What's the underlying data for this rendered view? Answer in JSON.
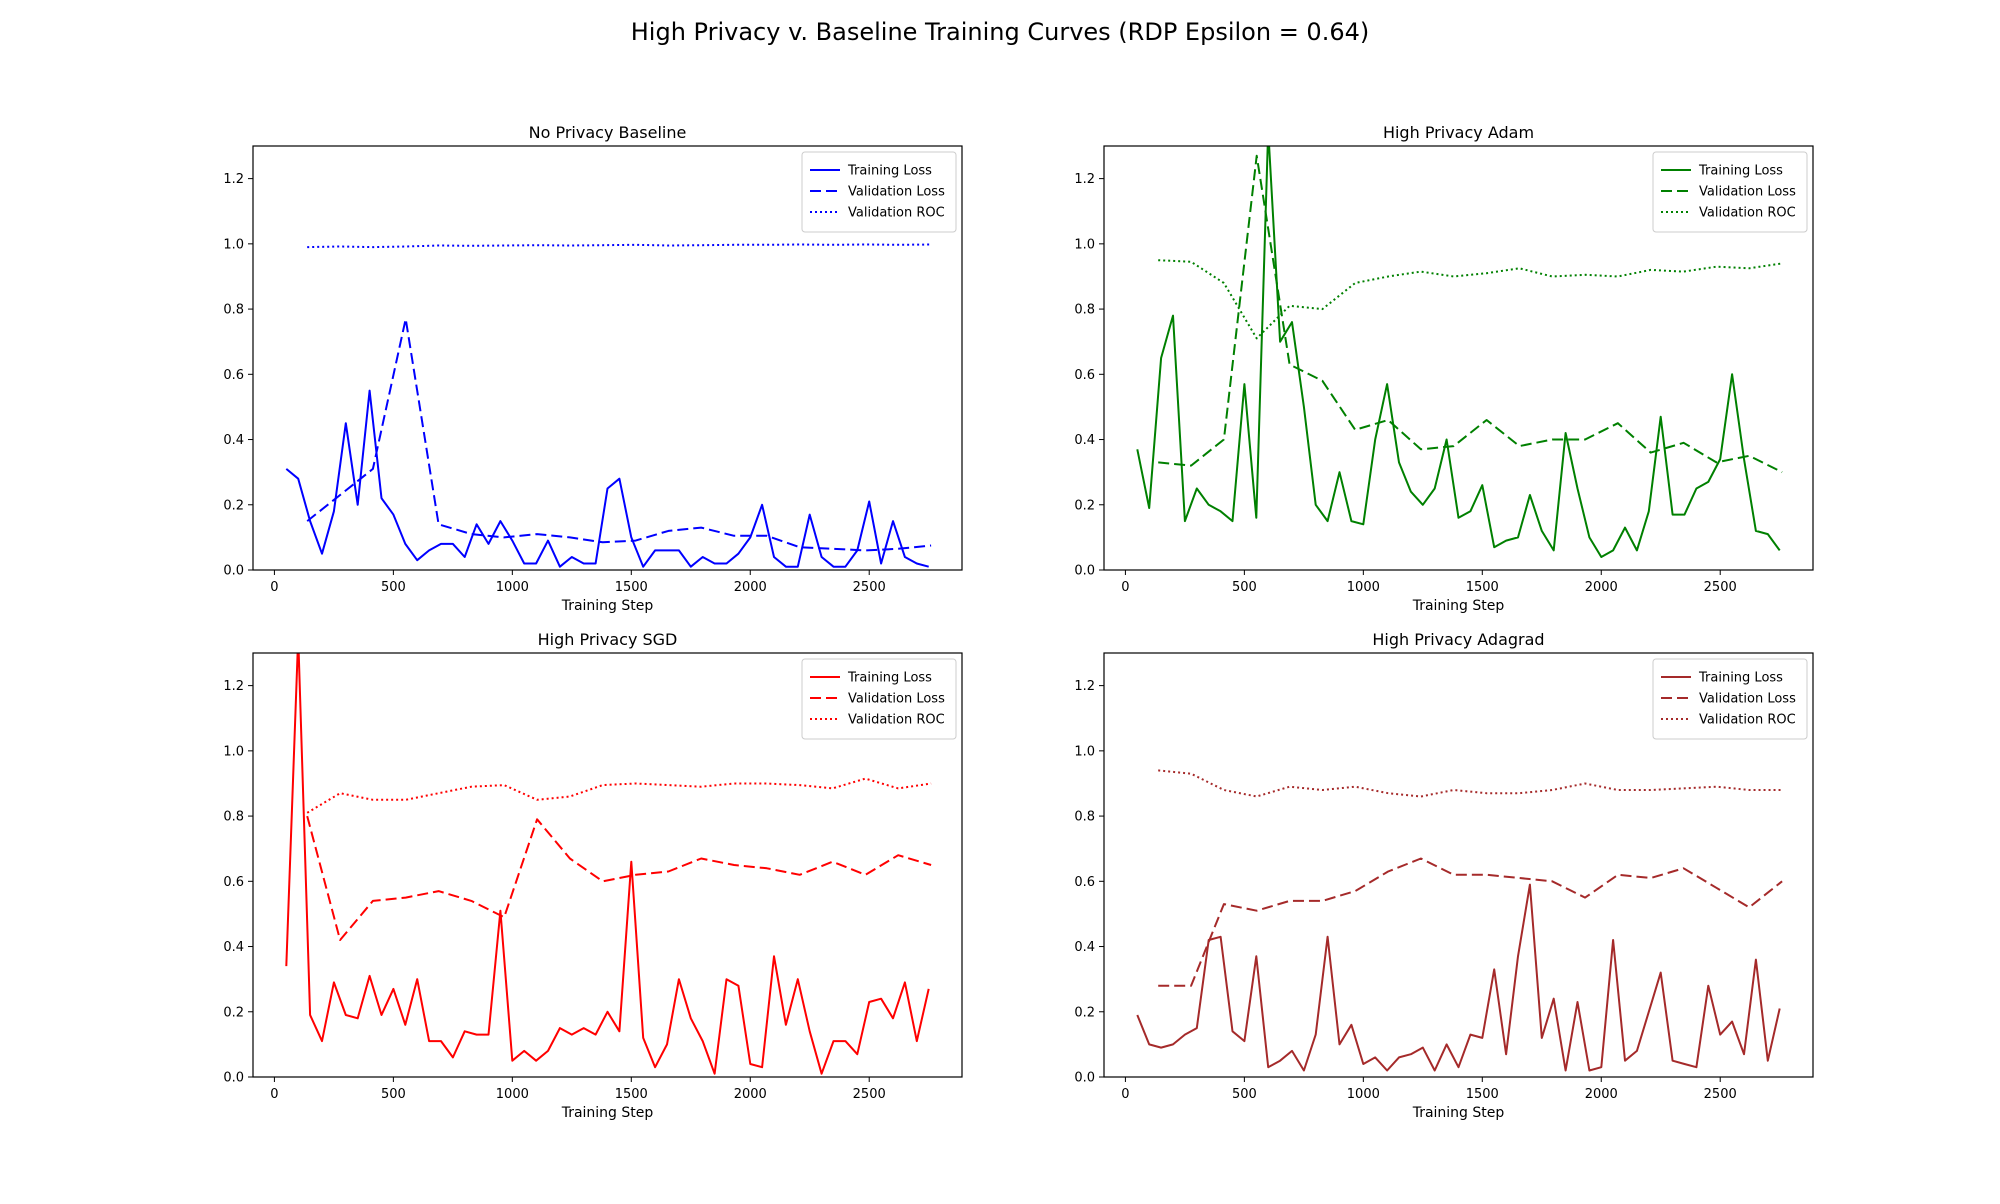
{
  "figure": {
    "suptitle": "High Privacy v. Baseline Training Curves (RDP Epsilon = 0.64)"
  },
  "chart_data": [
    {
      "type": "line",
      "title": "No Privacy Baseline",
      "xlabel": "Training Step",
      "ylabel": "",
      "xlim": [
        -90,
        2890
      ],
      "ylim": [
        0,
        1.3
      ],
      "xticks": [
        0,
        500,
        1000,
        1500,
        2000,
        2500
      ],
      "yticks": [
        0.0,
        0.2,
        0.4,
        0.6,
        0.8,
        1.0,
        1.2
      ],
      "grid": false,
      "legend_position": "top-right",
      "color": "#0000ff",
      "series": [
        {
          "name": "Training Loss",
          "style": "solid",
          "x": [
            50,
            100,
            150,
            200,
            250,
            300,
            350,
            400,
            450,
            500,
            550,
            600,
            650,
            700,
            750,
            800,
            850,
            900,
            950,
            1000,
            1050,
            1100,
            1150,
            1200,
            1250,
            1300,
            1350,
            1400,
            1450,
            1500,
            1550,
            1600,
            1650,
            1700,
            1750,
            1800,
            1850,
            1900,
            1950,
            2000,
            2050,
            2100,
            2150,
            2200,
            2250,
            2300,
            2350,
            2400,
            2450,
            2500,
            2550,
            2600,
            2650,
            2700,
            2750
          ],
          "y": [
            0.31,
            0.28,
            0.15,
            0.05,
            0.18,
            0.45,
            0.2,
            0.55,
            0.22,
            0.17,
            0.08,
            0.03,
            0.06,
            0.08,
            0.08,
            0.04,
            0.14,
            0.08,
            0.15,
            0.09,
            0.02,
            0.02,
            0.09,
            0.01,
            0.04,
            0.02,
            0.02,
            0.25,
            0.28,
            0.1,
            0.01,
            0.06,
            0.06,
            0.06,
            0.01,
            0.04,
            0.02,
            0.02,
            0.05,
            0.1,
            0.2,
            0.04,
            0.01,
            0.01,
            0.17,
            0.04,
            0.01,
            0.01,
            0.06,
            0.21,
            0.02,
            0.15,
            0.04,
            0.02,
            0.01
          ]
        },
        {
          "name": "Validation Loss",
          "style": "dashed",
          "x": [
            138,
            276,
            414,
            552,
            690,
            828,
            966,
            1104,
            1242,
            1380,
            1518,
            1656,
            1794,
            1932,
            2070,
            2208,
            2346,
            2484,
            2622,
            2760
          ],
          "y": [
            0.15,
            0.23,
            0.31,
            0.77,
            0.14,
            0.11,
            0.1,
            0.11,
            0.1,
            0.085,
            0.09,
            0.12,
            0.13,
            0.105,
            0.105,
            0.07,
            0.065,
            0.06,
            0.065,
            0.075
          ]
        },
        {
          "name": "Validation ROC",
          "style": "dotted",
          "x": [
            138,
            276,
            414,
            552,
            690,
            828,
            966,
            1104,
            1242,
            1380,
            1518,
            1656,
            1794,
            1932,
            2070,
            2208,
            2346,
            2484,
            2622,
            2760
          ],
          "y": [
            0.99,
            0.992,
            0.99,
            0.992,
            0.995,
            0.994,
            0.995,
            0.996,
            0.995,
            0.996,
            0.997,
            0.995,
            0.996,
            0.997,
            0.997,
            0.998,
            0.997,
            0.998,
            0.997,
            0.998
          ]
        }
      ]
    },
    {
      "type": "line",
      "title": "High Privacy Adam",
      "xlabel": "Training Step",
      "ylabel": "",
      "xlim": [
        -90,
        2890
      ],
      "ylim": [
        0,
        1.3
      ],
      "xticks": [
        0,
        500,
        1000,
        1500,
        2000,
        2500
      ],
      "yticks": [
        0.0,
        0.2,
        0.4,
        0.6,
        0.8,
        1.0,
        1.2
      ],
      "grid": false,
      "legend_position": "top-right",
      "color": "#008000",
      "series": [
        {
          "name": "Training Loss",
          "style": "solid",
          "x": [
            50,
            100,
            150,
            200,
            250,
            300,
            350,
            400,
            450,
            500,
            550,
            600,
            650,
            700,
            750,
            800,
            850,
            900,
            950,
            1000,
            1050,
            1100,
            1150,
            1200,
            1250,
            1300,
            1350,
            1400,
            1450,
            1500,
            1550,
            1600,
            1650,
            1700,
            1750,
            1800,
            1850,
            1900,
            1950,
            2000,
            2050,
            2100,
            2150,
            2200,
            2250,
            2300,
            2350,
            2400,
            2450,
            2500,
            2550,
            2600,
            2650,
            2700,
            2750
          ],
          "y": [
            0.37,
            0.19,
            0.65,
            0.78,
            0.15,
            0.25,
            0.2,
            0.18,
            0.15,
            0.57,
            0.16,
            1.35,
            0.7,
            0.76,
            0.5,
            0.2,
            0.15,
            0.3,
            0.15,
            0.14,
            0.4,
            0.57,
            0.33,
            0.24,
            0.2,
            0.25,
            0.4,
            0.16,
            0.18,
            0.26,
            0.07,
            0.09,
            0.1,
            0.23,
            0.12,
            0.06,
            0.42,
            0.25,
            0.1,
            0.04,
            0.06,
            0.13,
            0.06,
            0.18,
            0.47,
            0.17,
            0.17,
            0.25,
            0.27,
            0.34,
            0.6,
            0.34,
            0.12,
            0.11,
            0.06
          ]
        },
        {
          "name": "Validation Loss",
          "style": "dashed",
          "x": [
            138,
            276,
            414,
            552,
            690,
            828,
            966,
            1104,
            1242,
            1380,
            1518,
            1656,
            1794,
            1932,
            2070,
            2208,
            2346,
            2484,
            2622,
            2760
          ],
          "y": [
            0.33,
            0.32,
            0.4,
            1.27,
            0.63,
            0.58,
            0.43,
            0.46,
            0.37,
            0.38,
            0.46,
            0.38,
            0.4,
            0.4,
            0.45,
            0.36,
            0.39,
            0.33,
            0.35,
            0.3
          ]
        },
        {
          "name": "Validation ROC",
          "style": "dotted",
          "x": [
            138,
            276,
            414,
            552,
            690,
            828,
            966,
            1104,
            1242,
            1380,
            1518,
            1656,
            1794,
            1932,
            2070,
            2208,
            2346,
            2484,
            2622,
            2760
          ],
          "y": [
            0.95,
            0.945,
            0.88,
            0.71,
            0.81,
            0.8,
            0.88,
            0.9,
            0.915,
            0.9,
            0.91,
            0.925,
            0.9,
            0.905,
            0.9,
            0.92,
            0.915,
            0.93,
            0.925,
            0.94
          ]
        }
      ]
    },
    {
      "type": "line",
      "title": "High Privacy SGD",
      "xlabel": "Training Step",
      "ylabel": "",
      "xlim": [
        -90,
        2890
      ],
      "ylim": [
        0,
        1.3
      ],
      "xticks": [
        0,
        500,
        1000,
        1500,
        2000,
        2500
      ],
      "yticks": [
        0.0,
        0.2,
        0.4,
        0.6,
        0.8,
        1.0,
        1.2
      ],
      "grid": false,
      "legend_position": "top-right",
      "color": "#ff0000",
      "series": [
        {
          "name": "Training Loss",
          "style": "solid",
          "x": [
            50,
            100,
            150,
            200,
            250,
            300,
            350,
            400,
            450,
            500,
            550,
            600,
            650,
            700,
            750,
            800,
            850,
            900,
            950,
            1000,
            1050,
            1100,
            1150,
            1200,
            1250,
            1300,
            1350,
            1400,
            1450,
            1500,
            1550,
            1600,
            1650,
            1700,
            1750,
            1800,
            1850,
            1900,
            1950,
            2000,
            2050,
            2100,
            2150,
            2200,
            2250,
            2300,
            2350,
            2400,
            2450,
            2500,
            2550,
            2600,
            2650,
            2700,
            2750
          ],
          "y": [
            0.34,
            1.35,
            0.19,
            0.11,
            0.29,
            0.19,
            0.18,
            0.31,
            0.19,
            0.27,
            0.16,
            0.3,
            0.11,
            0.11,
            0.06,
            0.14,
            0.13,
            0.13,
            0.51,
            0.05,
            0.08,
            0.05,
            0.08,
            0.15,
            0.13,
            0.15,
            0.13,
            0.2,
            0.14,
            0.66,
            0.12,
            0.03,
            0.1,
            0.3,
            0.18,
            0.11,
            0.01,
            0.3,
            0.28,
            0.04,
            0.03,
            0.37,
            0.16,
            0.3,
            0.14,
            0.01,
            0.11,
            0.11,
            0.07,
            0.23,
            0.24,
            0.18,
            0.29,
            0.11,
            0.27
          ]
        },
        {
          "name": "Validation Loss",
          "style": "dashed",
          "x": [
            138,
            276,
            414,
            552,
            690,
            828,
            966,
            1104,
            1242,
            1380,
            1518,
            1656,
            1794,
            1932,
            2070,
            2208,
            2346,
            2484,
            2622,
            2760
          ],
          "y": [
            0.8,
            0.42,
            0.54,
            0.55,
            0.57,
            0.54,
            0.49,
            0.79,
            0.67,
            0.6,
            0.62,
            0.63,
            0.67,
            0.65,
            0.64,
            0.62,
            0.66,
            0.62,
            0.68,
            0.65
          ]
        },
        {
          "name": "Validation ROC",
          "style": "dotted",
          "x": [
            138,
            276,
            414,
            552,
            690,
            828,
            966,
            1104,
            1242,
            1380,
            1518,
            1656,
            1794,
            1932,
            2070,
            2208,
            2346,
            2484,
            2622,
            2760
          ],
          "y": [
            0.81,
            0.87,
            0.85,
            0.85,
            0.87,
            0.89,
            0.895,
            0.85,
            0.86,
            0.895,
            0.9,
            0.895,
            0.89,
            0.9,
            0.9,
            0.895,
            0.885,
            0.915,
            0.885,
            0.9
          ]
        }
      ]
    },
    {
      "type": "line",
      "title": "High Privacy Adagrad",
      "xlabel": "Training Step",
      "ylabel": "",
      "xlim": [
        -90,
        2890
      ],
      "ylim": [
        0,
        1.3
      ],
      "xticks": [
        0,
        500,
        1000,
        1500,
        2000,
        2500
      ],
      "yticks": [
        0.0,
        0.2,
        0.4,
        0.6,
        0.8,
        1.0,
        1.2
      ],
      "grid": false,
      "legend_position": "top-right",
      "color": "#a52a2a",
      "series": [
        {
          "name": "Training Loss",
          "style": "solid",
          "x": [
            50,
            100,
            150,
            200,
            250,
            300,
            350,
            400,
            450,
            500,
            550,
            600,
            650,
            700,
            750,
            800,
            850,
            900,
            950,
            1000,
            1050,
            1100,
            1150,
            1200,
            1250,
            1300,
            1350,
            1400,
            1450,
            1500,
            1550,
            1600,
            1650,
            1700,
            1750,
            1800,
            1850,
            1900,
            1950,
            2000,
            2050,
            2100,
            2150,
            2200,
            2250,
            2300,
            2350,
            2400,
            2450,
            2500,
            2550,
            2600,
            2650,
            2700,
            2750
          ],
          "y": [
            0.19,
            0.1,
            0.09,
            0.1,
            0.13,
            0.15,
            0.42,
            0.43,
            0.14,
            0.11,
            0.37,
            0.03,
            0.05,
            0.08,
            0.02,
            0.13,
            0.43,
            0.1,
            0.16,
            0.04,
            0.06,
            0.02,
            0.06,
            0.07,
            0.09,
            0.02,
            0.1,
            0.03,
            0.13,
            0.12,
            0.33,
            0.07,
            0.37,
            0.59,
            0.12,
            0.24,
            0.02,
            0.23,
            0.02,
            0.03,
            0.42,
            0.05,
            0.08,
            0.2,
            0.32,
            0.05,
            0.04,
            0.03,
            0.28,
            0.13,
            0.17,
            0.07,
            0.36,
            0.05,
            0.21
          ]
        },
        {
          "name": "Validation Loss",
          "style": "dashed",
          "x": [
            138,
            276,
            414,
            552,
            690,
            828,
            966,
            1104,
            1242,
            1380,
            1518,
            1656,
            1794,
            1932,
            2070,
            2208,
            2346,
            2484,
            2622,
            2760
          ],
          "y": [
            0.28,
            0.28,
            0.53,
            0.51,
            0.54,
            0.54,
            0.57,
            0.63,
            0.67,
            0.62,
            0.62,
            0.61,
            0.6,
            0.55,
            0.62,
            0.61,
            0.64,
            0.58,
            0.52,
            0.6
          ]
        },
        {
          "name": "Validation ROC",
          "style": "dotted",
          "x": [
            138,
            276,
            414,
            552,
            690,
            828,
            966,
            1104,
            1242,
            1380,
            1518,
            1656,
            1794,
            1932,
            2070,
            2208,
            2346,
            2484,
            2622,
            2760
          ],
          "y": [
            0.94,
            0.93,
            0.88,
            0.86,
            0.89,
            0.88,
            0.89,
            0.87,
            0.86,
            0.88,
            0.87,
            0.87,
            0.88,
            0.9,
            0.88,
            0.88,
            0.885,
            0.89,
            0.88,
            0.88
          ]
        }
      ]
    }
  ]
}
